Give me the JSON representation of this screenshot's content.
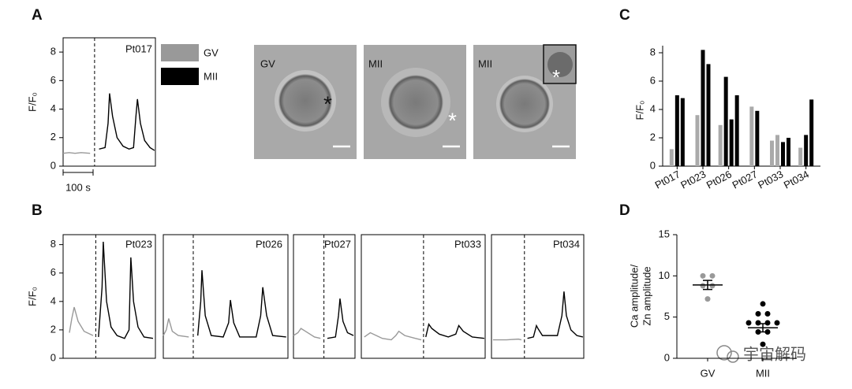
{
  "panel_labels": [
    "A",
    "B",
    "C",
    "D"
  ],
  "images": [
    {
      "label": "GV",
      "marker": "*"
    },
    {
      "label": "MII",
      "marker": "*"
    },
    {
      "label": "MII",
      "marker": "*"
    }
  ],
  "watermark": "宇宙解码",
  "chart_data": [
    {
      "type": "line",
      "title": "Pt017",
      "ylabel": "F/F₀",
      "x": [
        0,
        20,
        40,
        60,
        90,
        120,
        140,
        150,
        155,
        165,
        180,
        200,
        220,
        235,
        243,
        248,
        258,
        272,
        290,
        305
      ],
      "series": [
        {
          "name": "GV",
          "color": "#999999",
          "values": [
            0.9,
            0.95,
            0.9,
            0.95,
            0.9,
            null,
            null,
            null,
            null,
            null,
            null,
            null,
            null,
            null,
            null,
            null,
            null,
            null,
            null,
            null
          ]
        },
        {
          "name": "MII",
          "color": "#000000",
          "values": [
            null,
            null,
            null,
            null,
            null,
            1.2,
            1.3,
            3.0,
            5.1,
            3.5,
            2.0,
            1.4,
            1.2,
            1.3,
            3.5,
            4.7,
            3.0,
            1.8,
            1.3,
            1.1
          ]
        }
      ],
      "xlim": [
        0,
        308
      ],
      "ylim": [
        0,
        9
      ],
      "yticks": [
        0,
        2,
        4,
        6,
        8
      ],
      "scale_bar": {
        "value": 100,
        "label": "100 s"
      }
    },
    {
      "type": "line",
      "title": "Pt023",
      "ylabel": "F/F₀",
      "x": [
        21,
        29,
        37,
        50,
        70,
        100,
        118,
        130,
        134,
        145,
        160,
        180,
        205,
        220,
        226,
        235,
        250,
        270,
        300
      ],
      "series": [
        {
          "color": "#999999",
          "values": [
            1.8,
            2.8,
            3.6,
            2.6,
            1.9,
            1.6,
            null,
            null,
            null,
            null,
            null,
            null,
            null,
            null,
            null,
            null,
            null,
            null,
            null
          ]
        },
        {
          "color": "#000000",
          "values": [
            null,
            null,
            null,
            null,
            null,
            null,
            1.5,
            5.0,
            8.2,
            4.0,
            2.2,
            1.6,
            1.4,
            2.0,
            7.1,
            4.0,
            2.2,
            1.5,
            1.4
          ]
        }
      ],
      "xlim": [
        0,
        308
      ],
      "ylim": [
        0,
        8.7
      ],
      "yticks": [
        0,
        2,
        4,
        6,
        8
      ]
    },
    {
      "type": "line",
      "title": "Pt026",
      "x": [
        0,
        10,
        18,
        30,
        50,
        85,
        115,
        125,
        129,
        140,
        160,
        200,
        218,
        224,
        235,
        255,
        310,
        325,
        332,
        345,
        365,
        410
      ],
      "series": [
        {
          "color": "#999999",
          "values": [
            1.6,
            2.0,
            2.8,
            1.9,
            1.6,
            1.5,
            null,
            null,
            null,
            null,
            null,
            null,
            null,
            null,
            null,
            null,
            null,
            null,
            null,
            null,
            null,
            null
          ]
        },
        {
          "color": "#000000",
          "values": [
            null,
            null,
            null,
            null,
            null,
            null,
            1.6,
            4.0,
            6.2,
            3.0,
            1.6,
            1.5,
            2.5,
            4.1,
            2.5,
            1.5,
            1.5,
            3.0,
            5.0,
            3.0,
            1.6,
            1.5
          ]
        }
      ],
      "xlim": [
        0,
        416
      ],
      "ylim": [
        0,
        8.7
      ]
    },
    {
      "type": "line",
      "title": "Pt027",
      "x": [
        0,
        15,
        25,
        40,
        70,
        90,
        113,
        140,
        150,
        155,
        165,
        180,
        200
      ],
      "series": [
        {
          "color": "#999999",
          "values": [
            1.6,
            1.8,
            2.1,
            1.9,
            1.5,
            1.4,
            null,
            null,
            null,
            null,
            null,
            null,
            null
          ]
        },
        {
          "color": "#000000",
          "values": [
            null,
            null,
            null,
            null,
            null,
            null,
            1.4,
            1.5,
            3.0,
            4.2,
            2.6,
            1.8,
            1.6
          ]
        }
      ],
      "xlim": [
        0,
        205
      ],
      "ylim": [
        0,
        8.7
      ]
    },
    {
      "type": "line",
      "title": "Pt033",
      "x": [
        10,
        30,
        50,
        70,
        100,
        115,
        125,
        145,
        180,
        200,
        215,
        225,
        235,
        260,
        290,
        315,
        325,
        340,
        370,
        410
      ],
      "series": [
        {
          "color": "#999999",
          "values": [
            1.5,
            1.8,
            1.6,
            1.4,
            1.3,
            1.6,
            1.9,
            1.6,
            1.4,
            1.3,
            null,
            null,
            null,
            null,
            null,
            null,
            null,
            null,
            null,
            null
          ]
        },
        {
          "color": "#000000",
          "values": [
            null,
            null,
            null,
            null,
            null,
            null,
            null,
            null,
            null,
            null,
            1.5,
            2.4,
            2.1,
            1.7,
            1.5,
            1.7,
            2.3,
            1.9,
            1.5,
            1.4
          ]
        }
      ],
      "xlim": [
        0,
        413
      ],
      "ylim": [
        0,
        8.7
      ]
    },
    {
      "type": "line",
      "title": "Pt034",
      "x": [
        5,
        50,
        90,
        100,
        120,
        140,
        150,
        155,
        170,
        220,
        235,
        242,
        250,
        265,
        285,
        305
      ],
      "series": [
        {
          "color": "#999999",
          "values": [
            1.3,
            1.3,
            1.35,
            1.3,
            null,
            null,
            null,
            null,
            null,
            null,
            null,
            null,
            null,
            null,
            null,
            null
          ]
        },
        {
          "color": "#000000",
          "values": [
            null,
            null,
            null,
            null,
            1.4,
            1.5,
            2.3,
            2.1,
            1.6,
            1.6,
            3.0,
            4.7,
            3.0,
            2.0,
            1.6,
            1.5
          ]
        }
      ],
      "xlim": [
        0,
        308
      ],
      "ylim": [
        0,
        8.7
      ]
    },
    {
      "type": "bar",
      "ylabel": "F/F₀",
      "categories": [
        "Pt017",
        "Pt023",
        "Pt026",
        "Pt027",
        "Pt033",
        "Pt034"
      ],
      "series": [
        {
          "color": "#aaaaaa",
          "values": [
            1.2,
            3.6,
            2.9,
            4.2,
            1.8,
            1.3
          ]
        },
        {
          "color": "#aaaaaa",
          "values": [
            null,
            null,
            null,
            null,
            2.2,
            null
          ]
        },
        {
          "color": "#000000",
          "values": [
            5.0,
            8.2,
            6.3,
            3.9,
            1.7,
            2.2
          ]
        },
        {
          "color": "#000000",
          "values": [
            4.8,
            7.2,
            3.3,
            null,
            2.0,
            4.7
          ]
        },
        {
          "color": "#000000",
          "values": [
            null,
            null,
            5.0,
            null,
            null,
            null
          ]
        }
      ],
      "ylim": [
        0,
        8.5
      ],
      "yticks": [
        0,
        2,
        4,
        6,
        8
      ]
    },
    {
      "type": "strip",
      "ylabel": [
        "Ca amplitude/",
        "Zn amplitude"
      ],
      "categories": [
        "GV",
        "MII"
      ],
      "colors": [
        "#999999",
        "#000000"
      ],
      "points": [
        [
          10.0,
          10.0,
          8.8,
          8.8,
          7.2
        ],
        [
          6.6,
          5.4,
          5.4,
          4.3,
          4.3,
          4.3,
          4.3,
          3.2,
          3.2,
          1.7
        ]
      ],
      "means": [
        8.9,
        3.7
      ],
      "sems": [
        0.55,
        0.5
      ],
      "ylim": [
        0,
        15
      ],
      "yticks": [
        0,
        5,
        10,
        15
      ]
    }
  ]
}
